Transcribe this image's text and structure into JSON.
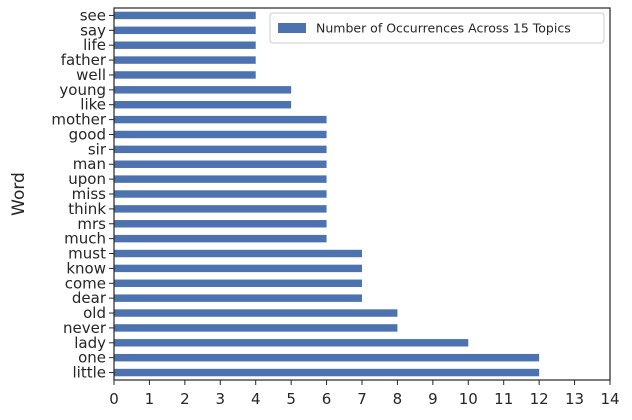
{
  "chart_data": {
    "type": "bar",
    "orientation": "horizontal",
    "categories": [
      "little",
      "one",
      "lady",
      "never",
      "old",
      "dear",
      "come",
      "know",
      "must",
      "much",
      "mrs",
      "think",
      "miss",
      "upon",
      "man",
      "sir",
      "good",
      "mother",
      "like",
      "young",
      "well",
      "father",
      "life",
      "say",
      "see"
    ],
    "series": [
      {
        "name": "Number of Occurrences Across 15 Topics",
        "values": [
          12,
          12,
          10,
          8,
          8,
          7,
          7,
          7,
          7,
          6,
          6,
          6,
          6,
          6,
          6,
          6,
          6,
          6,
          5,
          5,
          4,
          4,
          4,
          4,
          4
        ],
        "color": "#4c72b0"
      }
    ],
    "xlim": [
      0,
      14
    ],
    "xticks": [
      0,
      1,
      2,
      3,
      4,
      5,
      6,
      7,
      8,
      9,
      10,
      11,
      12,
      13,
      14
    ],
    "xlabel": "",
    "ylabel": "Word",
    "title": "",
    "legend_position": "upper-right",
    "grid": false
  }
}
